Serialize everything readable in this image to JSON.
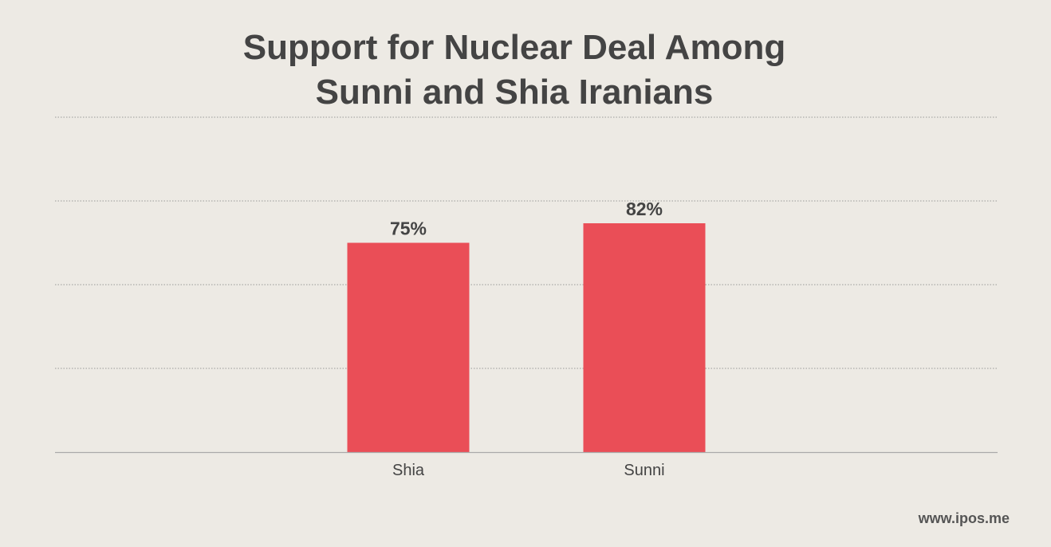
{
  "chart_data": {
    "type": "bar",
    "title": [
      "Support for Nuclear Deal Among",
      "Sunni and Shia Iranians"
    ],
    "categories": [
      "Shia",
      "Sunni"
    ],
    "values": [
      75,
      82
    ],
    "value_labels": [
      "75%",
      "82%"
    ],
    "ylim": [
      0,
      120
    ],
    "grid": true,
    "xlabel": "",
    "ylabel": "",
    "colors": {
      "bar": "#ea4e57",
      "text": "#444444",
      "grid": "#999999",
      "axis": "#aaaaaa"
    }
  },
  "source": "www.ipos.me"
}
